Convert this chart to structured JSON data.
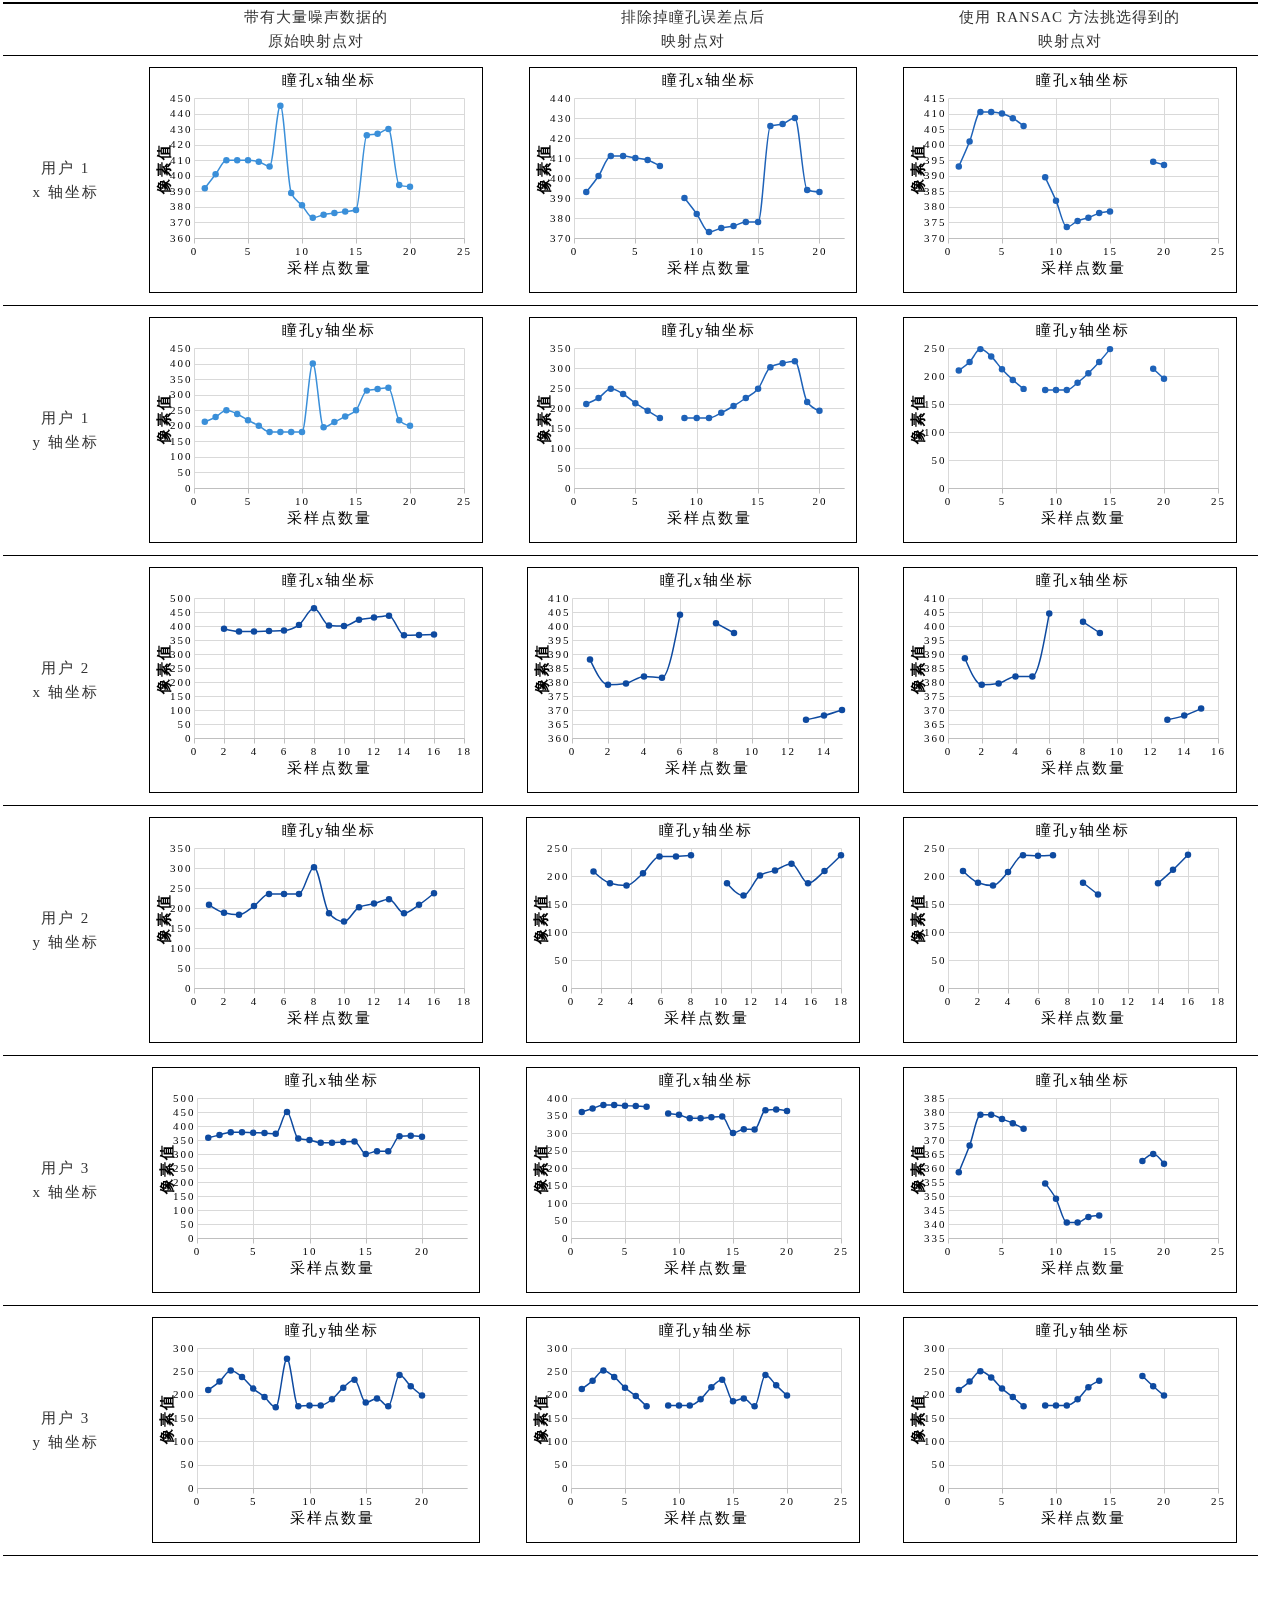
{
  "chart_data": [
    {
      "type": "line",
      "title": "瞳孔x轴坐标",
      "xlabel": "采样点数量",
      "ylabel": "像素值",
      "grid": true,
      "marker": "circle",
      "annotations": [
        "带有大量噪声数据的原始映射点对",
        "用户 1\nx 轴坐标"
      ],
      "x": [
        1,
        2,
        3,
        4,
        5,
        6,
        7,
        8,
        9,
        10,
        11,
        12,
        13,
        14,
        15,
        16,
        17,
        18,
        19,
        20
      ],
      "xlim": [
        0,
        25
      ],
      "xticks": [
        0,
        5,
        10,
        15,
        20,
        25
      ],
      "ylim": [
        360,
        450
      ],
      "yticks": [
        360,
        370,
        380,
        390,
        400,
        410,
        420,
        430,
        440,
        450
      ],
      "series": [
        {
          "color": "#3a8fd9",
          "values": [
            392,
            401,
            410,
            410,
            410,
            409,
            406,
            445,
            389,
            381,
            373,
            375,
            376,
            377,
            378,
            426,
            427,
            430,
            394,
            393
          ]
        }
      ]
    },
    {
      "type": "line",
      "title": "瞳孔x轴坐标",
      "xlabel": "采样点数量",
      "ylabel": "像素值",
      "grid": true,
      "marker": "circle",
      "annotations": [
        "排除掉瞳孔误差点后映射点对"
      ],
      "x": [
        1,
        2,
        3,
        4,
        5,
        6,
        7,
        8,
        9,
        10,
        11,
        12,
        13,
        14,
        15,
        16,
        17,
        18,
        19,
        20
      ],
      "xlim": [
        0,
        22
      ],
      "xticks": [
        0,
        5,
        10,
        15,
        20
      ],
      "ylim": [
        370,
        440
      ],
      "yticks": [
        370,
        380,
        390,
        400,
        410,
        420,
        430,
        440
      ],
      "series": [
        {
          "color": "#1e62b8",
          "values": [
            393,
            401,
            411,
            411,
            410,
            409,
            406,
            null,
            390,
            382,
            373,
            375,
            376,
            378,
            378,
            426,
            427,
            430,
            394,
            393
          ]
        }
      ]
    },
    {
      "type": "line",
      "title": "瞳孔x轴坐标",
      "xlabel": "采样点数量",
      "ylabel": "像素值",
      "grid": true,
      "marker": "circle",
      "annotations": [
        "使用 RANSAC 方法挑选得到的映射点对"
      ],
      "x": [
        1,
        2,
        3,
        4,
        5,
        6,
        7,
        8,
        9,
        10,
        11,
        12,
        13,
        14,
        15,
        16,
        17,
        18,
        19,
        20
      ],
      "xlim": [
        0,
        25
      ],
      "xticks": [
        0,
        5,
        10,
        15,
        20,
        25
      ],
      "ylim": [
        370,
        415
      ],
      "yticks": [
        370,
        375,
        380,
        385,
        390,
        395,
        400,
        405,
        410,
        415
      ],
      "series": [
        {
          "color": "#1e62b8",
          "values": [
            393,
            401,
            410.5,
            410.5,
            410,
            408.5,
            406,
            null,
            389.5,
            382,
            373.5,
            375.5,
            376.5,
            378,
            378.5,
            null,
            null,
            null,
            394.5,
            393.5
          ]
        }
      ]
    },
    {
      "type": "line",
      "title": "瞳孔y轴坐标",
      "xlabel": "采样点数量",
      "ylabel": "像素值",
      "grid": true,
      "marker": "circle",
      "annotations": [
        "用户 1\ny 轴坐标"
      ],
      "x": [
        1,
        2,
        3,
        4,
        5,
        6,
        7,
        8,
        9,
        10,
        11,
        12,
        13,
        14,
        15,
        16,
        17,
        18,
        19,
        20
      ],
      "xlim": [
        0,
        25
      ],
      "xticks": [
        0,
        5,
        10,
        15,
        20,
        25
      ],
      "ylim": [
        0,
        450
      ],
      "yticks": [
        0,
        50,
        100,
        150,
        200,
        250,
        300,
        350,
        400,
        450
      ],
      "series": [
        {
          "color": "#3a8fd9",
          "values": [
            213,
            228,
            250,
            238,
            218,
            200,
            180,
            180,
            180,
            180,
            400,
            195,
            212,
            230,
            250,
            313,
            318,
            322,
            218,
            200
          ]
        }
      ]
    },
    {
      "type": "line",
      "title": "瞳孔y轴坐标",
      "xlabel": "采样点数量",
      "ylabel": "像素值",
      "grid": true,
      "marker": "circle",
      "x": [
        1,
        2,
        3,
        4,
        5,
        6,
        7,
        8,
        9,
        10,
        11,
        12,
        13,
        14,
        15,
        16,
        17,
        18,
        19,
        20
      ],
      "xlim": [
        0,
        22
      ],
      "xticks": [
        0,
        5,
        10,
        15,
        20
      ],
      "ylim": [
        0,
        350
      ],
      "yticks": [
        0,
        50,
        100,
        150,
        200,
        250,
        300,
        350
      ],
      "series": [
        {
          "color": "#1e62b8",
          "values": [
            210,
            225,
            248,
            235,
            212,
            193,
            175,
            null,
            175,
            175,
            175,
            188,
            205,
            225,
            248,
            302,
            312,
            317,
            215,
            193
          ]
        }
      ]
    },
    {
      "type": "line",
      "title": "瞳孔y轴坐标",
      "xlabel": "采样点数量",
      "ylabel": "像素值",
      "grid": true,
      "marker": "circle",
      "x": [
        1,
        2,
        3,
        4,
        5,
        6,
        7,
        8,
        9,
        10,
        11,
        12,
        13,
        14,
        15,
        16,
        17,
        18,
        19,
        20
      ],
      "xlim": [
        0,
        25
      ],
      "xticks": [
        0,
        5,
        10,
        15,
        20,
        25
      ],
      "ylim": [
        0,
        250
      ],
      "yticks": [
        0,
        50,
        100,
        150,
        200,
        250
      ],
      "series": [
        {
          "color": "#1e62b8",
          "values": [
            210,
            225,
            248,
            235,
            212,
            193,
            177,
            null,
            175,
            175,
            175,
            188,
            205,
            225,
            248,
            null,
            null,
            null,
            213,
            195
          ]
        }
      ]
    },
    {
      "type": "line",
      "title": "瞳孔x轴坐标",
      "xlabel": "采样点数量",
      "ylabel": "像素值",
      "grid": true,
      "marker": "circle",
      "annotations": [
        "用户 2\nx 轴坐标"
      ],
      "x": [
        2,
        3,
        4,
        5,
        6,
        7,
        8,
        9,
        10,
        11,
        12,
        13,
        14,
        15,
        16
      ],
      "xlim": [
        0,
        18
      ],
      "xticks": [
        0,
        2,
        4,
        6,
        8,
        10,
        12,
        14,
        16,
        18
      ],
      "ylim": [
        0,
        500
      ],
      "yticks": [
        0,
        50,
        100,
        150,
        200,
        250,
        300,
        350,
        400,
        450,
        500
      ],
      "series": [
        {
          "color": "#0e4aa0",
          "values": [
            390,
            380,
            380,
            382,
            384,
            404,
            463,
            402,
            400,
            422,
            430,
            437,
            367,
            368,
            370
          ]
        }
      ]
    },
    {
      "type": "line",
      "title": "瞳孔x轴坐标",
      "xlabel": "采样点数量",
      "ylabel": "像素值",
      "grid": true,
      "marker": "circle",
      "x": [
        1,
        2,
        3,
        4,
        5,
        6,
        7,
        8,
        9,
        10,
        11,
        12,
        13,
        14,
        15
      ],
      "xlim": [
        0,
        15
      ],
      "xticks": [
        0,
        2,
        4,
        6,
        8,
        10,
        12,
        14
      ],
      "ylim": [
        360,
        410
      ],
      "yticks": [
        360,
        365,
        370,
        375,
        380,
        385,
        390,
        395,
        400,
        405,
        410
      ],
      "series": [
        {
          "color": "#0e4aa0",
          "values": [
            388,
            379,
            379.5,
            382,
            381.5,
            404,
            null,
            401,
            397.5,
            null,
            null,
            null,
            366.5,
            368,
            370
          ]
        }
      ]
    },
    {
      "type": "line",
      "title": "瞳孔x轴坐标",
      "xlabel": "采样点数量",
      "ylabel": "像素值",
      "grid": true,
      "marker": "circle",
      "x": [
        1,
        2,
        3,
        4,
        5,
        6,
        7,
        8,
        9,
        10,
        11,
        12,
        13,
        14,
        15
      ],
      "xlim": [
        0,
        16
      ],
      "xticks": [
        0,
        2,
        4,
        6,
        8,
        10,
        12,
        14,
        16
      ],
      "ylim": [
        360,
        410
      ],
      "yticks": [
        360,
        365,
        370,
        375,
        380,
        385,
        390,
        395,
        400,
        405,
        410
      ],
      "series": [
        {
          "color": "#0e4aa0",
          "values": [
            388.5,
            379,
            379.5,
            382,
            382,
            404.5,
            null,
            401.5,
            397.5,
            null,
            null,
            null,
            366.5,
            368,
            370.5
          ]
        }
      ]
    },
    {
      "type": "line",
      "title": "瞳孔y轴坐标",
      "xlabel": "采样点数量",
      "ylabel": "像素值",
      "grid": true,
      "marker": "circle",
      "annotations": [
        "用户 2\ny 轴坐标"
      ],
      "x": [
        1,
        2,
        3,
        4,
        5,
        6,
        7,
        8,
        9,
        10,
        11,
        12,
        13,
        14,
        15,
        16
      ],
      "xlim": [
        0,
        18
      ],
      "xticks": [
        0,
        2,
        4,
        6,
        8,
        10,
        12,
        14,
        16,
        18
      ],
      "ylim": [
        0,
        350
      ],
      "yticks": [
        0,
        50,
        100,
        150,
        200,
        250,
        300,
        350
      ],
      "series": [
        {
          "color": "#0e4aa0",
          "values": [
            208,
            188,
            183,
            205,
            235,
            235,
            235,
            302,
            187,
            166,
            202,
            211,
            222,
            187,
            208,
            237
          ]
        }
      ]
    },
    {
      "type": "line",
      "title": "瞳孔y轴坐标",
      "xlabel": "采样点数量",
      "ylabel": "像素值",
      "grid": true,
      "marker": "circle",
      "x": [
        1.5,
        2.6,
        3.7,
        4.8,
        5.9,
        7,
        8,
        9.2,
        10.4,
        11.5,
        12.6,
        13.6,
        14.7,
        15.8,
        16.9,
        18
      ],
      "xlim": [
        0,
        18
      ],
      "xticks": [
        0,
        2,
        4,
        6,
        8,
        10,
        12,
        14,
        16,
        18
      ],
      "ylim": [
        0,
        250
      ],
      "yticks": [
        0,
        50,
        100,
        150,
        200,
        250
      ],
      "series": [
        {
          "color": "#0e4aa0",
          "values": [
            208,
            187,
            183,
            205,
            235,
            235,
            237,
            null,
            187,
            165,
            201,
            210,
            222,
            187,
            209,
            237
          ]
        }
      ]
    },
    {
      "type": "line",
      "title": "瞳孔y轴坐标",
      "xlabel": "采样点数量",
      "ylabel": "像素值",
      "grid": true,
      "marker": "circle",
      "x": [
        1,
        2,
        3,
        4,
        5,
        6,
        7,
        8,
        9,
        10,
        11,
        12,
        13,
        14,
        15,
        16
      ],
      "xlim": [
        0,
        18
      ],
      "xticks": [
        0,
        2,
        4,
        6,
        8,
        10,
        12,
        14,
        16,
        18
      ],
      "ylim": [
        0,
        250
      ],
      "yticks": [
        0,
        50,
        100,
        150,
        200,
        250
      ],
      "series": [
        {
          "color": "#0e4aa0",
          "values": [
            209,
            188,
            183,
            207,
            237,
            236,
            237,
            null,
            188,
            167,
            null,
            null,
            null,
            187,
            211,
            238
          ]
        }
      ]
    },
    {
      "type": "line",
      "title": "瞳孔x轴坐标",
      "xlabel": "采样点数量",
      "ylabel": "像素值",
      "grid": true,
      "marker": "circle",
      "annotations": [
        "用户 3\nx 轴坐标"
      ],
      "x": [
        1,
        2,
        3,
        4,
        5,
        6,
        7,
        8,
        9,
        10,
        11,
        12,
        13,
        14,
        15,
        16,
        17,
        18,
        19,
        20
      ],
      "xlim": [
        0,
        24
      ],
      "xticks": [
        0,
        5,
        10,
        15,
        20
      ],
      "ylim": [
        0,
        500
      ],
      "yticks": [
        0,
        50,
        100,
        150,
        200,
        250,
        300,
        350,
        400,
        450,
        500
      ],
      "series": [
        {
          "color": "#0e4aa0",
          "values": [
            358,
            368,
            378,
            378,
            376,
            375,
            372,
            450,
            355,
            350,
            340,
            340,
            343,
            345,
            300,
            310,
            310,
            363,
            365,
            362
          ]
        }
      ]
    },
    {
      "type": "line",
      "title": "瞳孔x轴坐标",
      "xlabel": "采样点数量",
      "ylabel": "像素值",
      "grid": true,
      "marker": "circle",
      "x": [
        1,
        2,
        3,
        4,
        5,
        6,
        7,
        8,
        9,
        10,
        11,
        12,
        13,
        14,
        15,
        16,
        17,
        18,
        19,
        20
      ],
      "xlim": [
        0,
        25
      ],
      "xticks": [
        0,
        5,
        10,
        15,
        20,
        25
      ],
      "ylim": [
        0,
        400
      ],
      "yticks": [
        0,
        50,
        100,
        150,
        200,
        250,
        300,
        350,
        400
      ],
      "series": [
        {
          "color": "#0e4aa0",
          "values": [
            360,
            370,
            380,
            380,
            378,
            377,
            375,
            null,
            356,
            352,
            342,
            342,
            345,
            347,
            300,
            311,
            310,
            365,
            367,
            363
          ]
        }
      ]
    },
    {
      "type": "line",
      "title": "瞳孔x轴坐标",
      "xlabel": "采样点数量",
      "ylabel": "像素值",
      "grid": true,
      "marker": "circle",
      "x": [
        1,
        2,
        3,
        4,
        5,
        6,
        7,
        8,
        9,
        10,
        11,
        12,
        13,
        14,
        15,
        16,
        17,
        18,
        19,
        20
      ],
      "xlim": [
        0,
        25
      ],
      "xticks": [
        0,
        5,
        10,
        15,
        20,
        25
      ],
      "ylim": [
        335,
        385
      ],
      "yticks": [
        335,
        340,
        345,
        350,
        355,
        360,
        365,
        370,
        375,
        380,
        385
      ],
      "series": [
        {
          "color": "#0e4aa0",
          "values": [
            358.5,
            368,
            379,
            379,
            377.5,
            376,
            374,
            null,
            354.5,
            349,
            340.5,
            340.5,
            342.5,
            343,
            null,
            null,
            null,
            362.5,
            365,
            361.5
          ]
        }
      ]
    },
    {
      "type": "line",
      "title": "瞳孔y轴坐标",
      "xlabel": "采样点数量",
      "ylabel": "像素值",
      "grid": true,
      "marker": "circle",
      "annotations": [
        "用户 3\ny 轴坐标"
      ],
      "x": [
        1,
        2,
        3,
        4,
        5,
        6,
        7,
        8,
        9,
        10,
        11,
        12,
        13,
        14,
        15,
        16,
        17,
        18,
        19,
        20
      ],
      "xlim": [
        0,
        24
      ],
      "xticks": [
        0,
        5,
        10,
        15,
        20
      ],
      "ylim": [
        0,
        300
      ],
      "yticks": [
        0,
        50,
        100,
        150,
        200,
        250,
        300
      ],
      "series": [
        {
          "color": "#0e4aa0",
          "values": [
            210,
            228,
            252,
            238,
            213,
            195,
            173,
            277,
            175,
            177,
            177,
            190,
            215,
            232,
            183,
            192,
            175,
            242,
            218,
            198
          ]
        }
      ]
    },
    {
      "type": "line",
      "title": "瞳孔y轴坐标",
      "xlabel": "采样点数量",
      "ylabel": "像素值",
      "grid": true,
      "marker": "circle",
      "x": [
        1,
        2,
        3,
        4,
        5,
        6,
        7,
        8,
        9,
        10,
        11,
        12,
        13,
        14,
        15,
        16,
        17,
        18,
        19,
        20
      ],
      "xlim": [
        0,
        25
      ],
      "xticks": [
        0,
        5,
        10,
        15,
        20,
        25
      ],
      "ylim": [
        0,
        300
      ],
      "yticks": [
        0,
        50,
        100,
        150,
        200,
        250,
        300
      ],
      "series": [
        {
          "color": "#0e4aa0",
          "values": [
            212,
            230,
            252,
            238,
            215,
            197,
            175,
            null,
            177,
            177,
            177,
            190,
            216,
            232,
            186,
            192,
            175,
            242,
            220,
            198
          ]
        }
      ]
    },
    {
      "type": "line",
      "title": "瞳孔y轴坐标",
      "xlabel": "采样点数量",
      "ylabel": "像素值",
      "grid": true,
      "marker": "circle",
      "x": [
        1,
        2,
        3,
        4,
        5,
        6,
        7,
        8,
        9,
        10,
        11,
        12,
        13,
        14,
        15,
        16,
        17,
        18,
        19,
        20
      ],
      "xlim": [
        0,
        25
      ],
      "xticks": [
        0,
        5,
        10,
        15,
        20,
        25
      ],
      "ylim": [
        0,
        300
      ],
      "yticks": [
        0,
        50,
        100,
        150,
        200,
        250,
        300
      ],
      "series": [
        {
          "color": "#0e4aa0",
          "values": [
            210,
            228,
            250,
            237,
            213,
            195,
            175,
            null,
            177,
            177,
            177,
            190,
            216,
            230,
            null,
            null,
            null,
            240,
            218,
            198
          ]
        }
      ]
    }
  ]
}
